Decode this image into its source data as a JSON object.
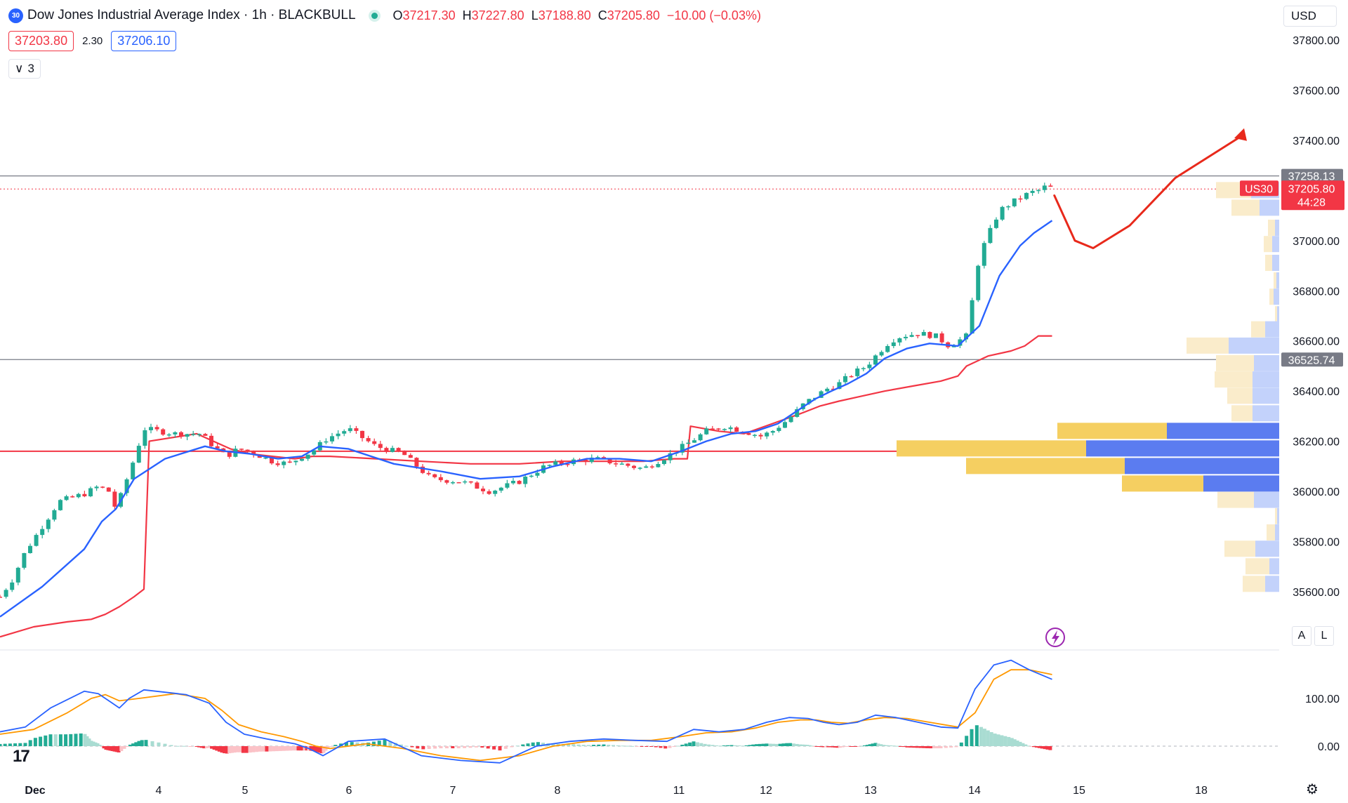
{
  "header": {
    "badge": "30",
    "title": "Dow Jones Industrial Average Index · 1h · BLACKBULL",
    "ohlc": [
      {
        "label": "O",
        "value": "37217.30"
      },
      {
        "label": "H",
        "value": "37227.80"
      },
      {
        "label": "L",
        "value": "37188.80"
      },
      {
        "label": "C",
        "value": "37205.80"
      }
    ],
    "change": "−10.00 (−0.03%)",
    "sell_price": "37203.80",
    "spread": "2.30",
    "buy_price": "37206.10",
    "indicators_count": "3"
  },
  "currency": "USD",
  "axis_buttons": {
    "auto": "A",
    "log": "L"
  },
  "price_tags": {
    "resistance": "37258.13",
    "symbol": "US30",
    "last": "37205.80",
    "countdown": "44:28",
    "support": "36525.74"
  },
  "colors": {
    "bull": "#22ab94",
    "bear": "#f23645",
    "ema": "#2962ff",
    "vwap": "#f23645",
    "macd": "#2962ff",
    "signal": "#ff9800",
    "arrow": "#e8291b"
  },
  "chart_data": [
    {
      "type": "candlestick",
      "title": "Dow Jones Industrial Average Index · 1h · BLACKBULL",
      "ylim": [
        35400,
        37870
      ],
      "yticks": [
        "37800.00",
        "37600.00",
        "37400.00",
        "37200.00",
        "37000.00",
        "36800.00",
        "36600.00",
        "36400.00",
        "36200.00",
        "36000.00",
        "35800.00",
        "35600.00"
      ],
      "xticks": [
        {
          "label": "Dec",
          "day": 1
        },
        {
          "label": "4",
          "day": 4
        },
        {
          "label": "5",
          "day": 5
        },
        {
          "label": "6",
          "day": 6
        },
        {
          "label": "7",
          "day": 7
        },
        {
          "label": "8",
          "day": 8
        },
        {
          "label": "11",
          "day": 11
        },
        {
          "label": "12",
          "day": 12
        },
        {
          "label": "13",
          "day": 13
        },
        {
          "label": "14",
          "day": 14
        },
        {
          "label": "15",
          "day": 15
        },
        {
          "label": "18",
          "day": 18
        }
      ],
      "horizontal_lines": [
        {
          "name": "resistance",
          "value": 37258.13
        },
        {
          "name": "support",
          "value": 36525.74
        },
        {
          "name": "key-level",
          "value": 36160
        }
      ],
      "close_path": [
        [
          1.0,
          35580
        ],
        [
          1.15,
          35650
        ],
        [
          1.3,
          35760
        ],
        [
          1.5,
          35860
        ],
        [
          1.7,
          35960
        ],
        [
          2.0,
          35990
        ],
        [
          2.4,
          36020
        ],
        [
          2.7,
          36000
        ],
        [
          2.9,
          35930
        ],
        [
          3.1,
          36020
        ],
        [
          3.3,
          36130
        ],
        [
          3.5,
          36250
        ],
        [
          3.8,
          36230
        ],
        [
          4.1,
          36230
        ],
        [
          4.4,
          36180
        ],
        [
          4.7,
          36140
        ],
        [
          5.0,
          36170
        ],
        [
          5.3,
          36150
        ],
        [
          5.6,
          36120
        ],
        [
          5.9,
          36110
        ],
        [
          6.2,
          36140
        ],
        [
          6.5,
          36160
        ],
        [
          6.9,
          36210
        ],
        [
          7.2,
          36250
        ],
        [
          7.5,
          36180
        ],
        [
          7.8,
          36150
        ],
        [
          8.1,
          36050
        ],
        [
          8.4,
          36040
        ],
        [
          8.7,
          36000
        ],
        [
          9.0,
          36040
        ],
        [
          9.3,
          36100
        ],
        [
          9.6,
          36120
        ],
        [
          9.9,
          36130
        ],
        [
          10.2,
          36110
        ],
        [
          10.5,
          36090
        ],
        [
          10.8,
          36140
        ],
        [
          11.1,
          36190
        ],
        [
          11.4,
          36240
        ],
        [
          11.7,
          36260
        ],
        [
          12.0,
          36240
        ],
        [
          12.3,
          36220
        ],
        [
          12.5,
          36240
        ],
        [
          12.8,
          36290
        ],
        [
          13.1,
          36350
        ],
        [
          13.4,
          36380
        ],
        [
          13.7,
          36410
        ],
        [
          14.0,
          36430
        ],
        [
          14.3,
          36470
        ],
        [
          14.6,
          36500
        ],
        [
          14.9,
          36560
        ],
        [
          15.1,
          36600
        ],
        [
          15.3,
          36620
        ],
        [
          15.6,
          36630
        ],
        [
          15.9,
          36620
        ],
        [
          16.1,
          36580
        ],
        [
          16.3,
          36620
        ],
        [
          16.45,
          36940
        ],
        [
          16.6,
          37020
        ],
        [
          16.8,
          37120
        ],
        [
          17.0,
          37150
        ],
        [
          17.2,
          37170
        ],
        [
          17.4,
          37190
        ],
        [
          17.6,
          37200
        ],
        [
          17.8,
          37220
        ],
        [
          17.9,
          37206
        ]
      ],
      "ema": [
        [
          1.0,
          35500
        ],
        [
          1.5,
          35620
        ],
        [
          2.0,
          35770
        ],
        [
          2.5,
          35880
        ],
        [
          2.9,
          35930
        ],
        [
          3.3,
          36050
        ],
        [
          3.7,
          36130
        ],
        [
          4.2,
          36180
        ],
        [
          4.7,
          36160
        ],
        [
          5.2,
          36150
        ],
        [
          5.7,
          36130
        ],
        [
          6.2,
          36140
        ],
        [
          6.7,
          36180
        ],
        [
          7.2,
          36170
        ],
        [
          7.7,
          36110
        ],
        [
          8.2,
          36080
        ],
        [
          8.6,
          36050
        ],
        [
          9.0,
          36060
        ],
        [
          9.4,
          36100
        ],
        [
          9.8,
          36130
        ],
        [
          10.2,
          36130
        ],
        [
          10.6,
          36120
        ],
        [
          11.0,
          36160
        ],
        [
          11.4,
          36200
        ],
        [
          11.8,
          36230
        ],
        [
          12.2,
          36240
        ],
        [
          12.6,
          36270
        ],
        [
          13.0,
          36330
        ],
        [
          13.4,
          36370
        ],
        [
          13.8,
          36400
        ],
        [
          14.2,
          36430
        ],
        [
          14.6,
          36470
        ],
        [
          15.0,
          36530
        ],
        [
          15.4,
          36570
        ],
        [
          15.8,
          36590
        ],
        [
          16.2,
          36580
        ],
        [
          16.45,
          36660
        ],
        [
          16.8,
          36860
        ],
        [
          17.2,
          36980
        ],
        [
          17.5,
          37030
        ],
        [
          17.9,
          37080
        ]
      ],
      "vwap": [
        [
          1.0,
          35420
        ],
        [
          1.4,
          35460
        ],
        [
          1.8,
          35480
        ],
        [
          2.2,
          35490
        ],
        [
          2.6,
          35510
        ],
        [
          3.0,
          35540
        ],
        [
          3.3,
          35580
        ],
        [
          3.5,
          35610
        ],
        [
          3.55,
          36200
        ],
        [
          4.0,
          36230
        ],
        [
          4.4,
          36200
        ],
        [
          4.8,
          36170
        ],
        [
          5.2,
          36150
        ],
        [
          5.6,
          36140
        ],
        [
          6.0,
          36130
        ],
        [
          6.5,
          36140
        ],
        [
          7.0,
          36140
        ],
        [
          7.5,
          36130
        ],
        [
          8.0,
          36120
        ],
        [
          8.5,
          36110
        ],
        [
          9.0,
          36110
        ],
        [
          9.5,
          36120
        ],
        [
          10.0,
          36120
        ],
        [
          10.5,
          36120
        ],
        [
          10.9,
          36130
        ],
        [
          11.1,
          36130
        ],
        [
          11.15,
          36260
        ],
        [
          11.6,
          36240
        ],
        [
          12.0,
          36230
        ],
        [
          12.5,
          36270
        ],
        [
          13.0,
          36310
        ],
        [
          13.5,
          36340
        ],
        [
          14.0,
          36360
        ],
        [
          14.5,
          36380
        ],
        [
          15.0,
          36400
        ],
        [
          15.5,
          36420
        ],
        [
          16.0,
          36440
        ],
        [
          16.2,
          36460
        ],
        [
          16.3,
          36500
        ],
        [
          16.6,
          36540
        ],
        [
          17.0,
          36560
        ],
        [
          17.3,
          36580
        ],
        [
          17.6,
          36620
        ],
        [
          17.9,
          36620
        ]
      ],
      "volume_profile": [
        {
          "price": 37200,
          "buy": 40,
          "sell": 50
        },
        {
          "price": 37130,
          "buy": 28,
          "sell": 40
        },
        {
          "price": 37050,
          "buy": 6,
          "sell": 10
        },
        {
          "price": 36985,
          "buy": 10,
          "sell": 12
        },
        {
          "price": 36910,
          "buy": 10,
          "sell": 10
        },
        {
          "price": 36840,
          "buy": 4,
          "sell": 4
        },
        {
          "price": 36775,
          "buy": 8,
          "sell": 6
        },
        {
          "price": 36705,
          "buy": 3,
          "sell": 3
        },
        {
          "price": 36645,
          "buy": 20,
          "sell": 20
        },
        {
          "price": 36580,
          "buy": 72,
          "sell": 60
        },
        {
          "price": 36510,
          "buy": 36,
          "sell": 54
        },
        {
          "price": 36445,
          "buy": 38,
          "sell": 54
        },
        {
          "price": 36380,
          "buy": 38,
          "sell": 36
        },
        {
          "price": 36310,
          "buy": 38,
          "sell": 30
        },
        {
          "price": 36240,
          "buy": 160,
          "sell": 156
        },
        {
          "price": 36170,
          "buy": 275,
          "sell": 270
        },
        {
          "price": 36100,
          "buy": 220,
          "sell": 226
        },
        {
          "price": 36030,
          "buy": 108,
          "sell": 116
        },
        {
          "price": 35965,
          "buy": 36,
          "sell": 52
        },
        {
          "price": 35900,
          "buy": 3,
          "sell": 3
        },
        {
          "price": 35835,
          "buy": 6,
          "sell": 12
        },
        {
          "price": 35770,
          "buy": 34,
          "sell": 44
        },
        {
          "price": 35700,
          "buy": 14,
          "sell": 34
        },
        {
          "price": 35630,
          "buy": 20,
          "sell": 32
        }
      ],
      "forecast_path": [
        [
          17.95,
          37180
        ],
        [
          18.4,
          37000
        ],
        [
          18.8,
          36970
        ],
        [
          19.3,
          37060
        ],
        [
          19.8,
          37250
        ],
        [
          20.4,
          37420
        ]
      ]
    },
    {
      "type": "line",
      "name": "MACD",
      "ylim": [
        -80,
        190
      ],
      "yticks": [
        "100.00",
        "0.00"
      ],
      "macd": [
        [
          1.0,
          30
        ],
        [
          1.3,
          40
        ],
        [
          1.6,
          80
        ],
        [
          2.0,
          115
        ],
        [
          2.4,
          110
        ],
        [
          2.8,
          90
        ],
        [
          3.0,
          80
        ],
        [
          3.2,
          100
        ],
        [
          3.5,
          118
        ],
        [
          3.9,
          108
        ],
        [
          4.3,
          90
        ],
        [
          4.7,
          50
        ],
        [
          5.1,
          25
        ],
        [
          5.5,
          15
        ],
        [
          6.0,
          5
        ],
        [
          6.4,
          -5
        ],
        [
          6.8,
          -20
        ],
        [
          7.2,
          10
        ],
        [
          7.6,
          15
        ],
        [
          8.0,
          -20
        ],
        [
          8.4,
          -30
        ],
        [
          8.8,
          -35
        ],
        [
          9.2,
          0
        ],
        [
          9.6,
          10
        ],
        [
          10.0,
          15
        ],
        [
          10.4,
          12
        ],
        [
          10.8,
          10
        ],
        [
          11.2,
          35
        ],
        [
          11.6,
          30
        ],
        [
          12.0,
          35
        ],
        [
          12.4,
          50
        ],
        [
          12.8,
          60
        ],
        [
          13.2,
          58
        ],
        [
          13.6,
          50
        ],
        [
          14.0,
          45
        ],
        [
          14.4,
          50
        ],
        [
          14.8,
          65
        ],
        [
          15.2,
          60
        ],
        [
          15.6,
          50
        ],
        [
          16.0,
          40
        ],
        [
          16.2,
          38
        ],
        [
          16.4,
          120
        ],
        [
          16.7,
          170
        ],
        [
          17.0,
          180
        ],
        [
          17.4,
          160
        ],
        [
          17.9,
          140
        ]
      ],
      "signal": [
        [
          1.0,
          25
        ],
        [
          1.4,
          35
        ],
        [
          1.8,
          70
        ],
        [
          2.2,
          100
        ],
        [
          2.6,
          108
        ],
        [
          3.0,
          95
        ],
        [
          3.4,
          100
        ],
        [
          3.8,
          110
        ],
        [
          4.2,
          100
        ],
        [
          4.6,
          75
        ],
        [
          5.0,
          45
        ],
        [
          5.4,
          30
        ],
        [
          5.8,
          20
        ],
        [
          6.2,
          10
        ],
        [
          6.6,
          0
        ],
        [
          7.0,
          -5
        ],
        [
          7.4,
          5
        ],
        [
          7.8,
          -5
        ],
        [
          8.2,
          -20
        ],
        [
          8.6,
          -30
        ],
        [
          9.0,
          -20
        ],
        [
          9.4,
          0
        ],
        [
          9.8,
          10
        ],
        [
          10.2,
          12
        ],
        [
          10.6,
          12
        ],
        [
          11.0,
          20
        ],
        [
          11.4,
          28
        ],
        [
          11.8,
          30
        ],
        [
          12.2,
          38
        ],
        [
          12.6,
          50
        ],
        [
          13.0,
          55
        ],
        [
          13.4,
          55
        ],
        [
          13.8,
          50
        ],
        [
          14.2,
          48
        ],
        [
          14.6,
          55
        ],
        [
          15.0,
          60
        ],
        [
          15.4,
          58
        ],
        [
          15.8,
          50
        ],
        [
          16.2,
          40
        ],
        [
          16.4,
          70
        ],
        [
          16.7,
          140
        ],
        [
          17.0,
          160
        ],
        [
          17.4,
          160
        ],
        [
          17.9,
          150
        ]
      ]
    }
  ]
}
